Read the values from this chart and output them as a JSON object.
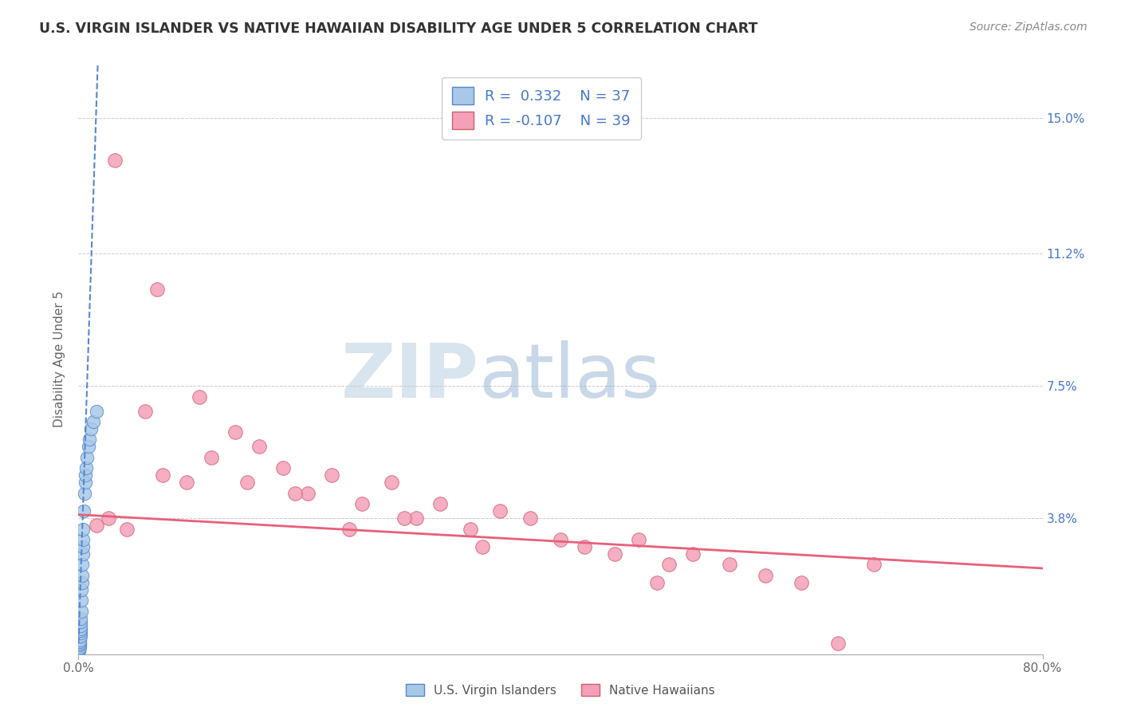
{
  "title": "U.S. VIRGIN ISLANDER VS NATIVE HAWAIIAN DISABILITY AGE UNDER 5 CORRELATION CHART",
  "source": "Source: ZipAtlas.com",
  "ylabel_left": "Disability Age Under 5",
  "legend_bottom": [
    "U.S. Virgin Islanders",
    "Native Hawaiians"
  ],
  "r_vi": 0.332,
  "n_vi": 37,
  "r_nh": -0.107,
  "n_nh": 39,
  "color_vi": "#a8c8e8",
  "color_nh": "#f4a0b8",
  "color_vi_line": "#5588cc",
  "color_nh_line": "#e8607a",
  "watermark_zip": "ZIP",
  "watermark_atlas": "atlas",
  "background_color": "#ffffff",
  "xmin": 0.0,
  "xmax": 80.0,
  "ymin": 0.0,
  "ymax": 16.5,
  "ytick_vals": [
    0.0,
    3.8,
    7.5,
    11.2,
    15.0
  ],
  "ytick_labels": [
    "",
    "3.8%",
    "7.5%",
    "11.2%",
    "15.0%"
  ],
  "vi_x": [
    0.05,
    0.06,
    0.07,
    0.08,
    0.09,
    0.1,
    0.11,
    0.12,
    0.13,
    0.14,
    0.15,
    0.16,
    0.17,
    0.18,
    0.19,
    0.2,
    0.22,
    0.24,
    0.26,
    0.28,
    0.3,
    0.32,
    0.34,
    0.36,
    0.38,
    0.4,
    0.45,
    0.5,
    0.55,
    0.6,
    0.65,
    0.7,
    0.8,
    0.9,
    1.0,
    1.2,
    1.5
  ],
  "vi_y": [
    0.1,
    0.1,
    0.15,
    0.2,
    0.25,
    0.3,
    0.35,
    0.4,
    0.5,
    0.5,
    0.6,
    0.65,
    0.7,
    0.8,
    0.9,
    1.0,
    1.2,
    1.5,
    1.8,
    2.0,
    2.2,
    2.5,
    2.8,
    3.0,
    3.2,
    3.5,
    4.0,
    4.5,
    4.8,
    5.0,
    5.2,
    5.5,
    5.8,
    6.0,
    6.3,
    6.5,
    6.8
  ],
  "nh_x": [
    1.5,
    2.5,
    4.0,
    5.5,
    7.0,
    9.0,
    11.0,
    13.0,
    15.0,
    17.0,
    19.0,
    21.0,
    23.5,
    26.0,
    28.0,
    30.0,
    32.5,
    35.0,
    37.5,
    40.0,
    42.0,
    44.5,
    46.5,
    49.0,
    51.0,
    54.0,
    57.0,
    60.0,
    63.0,
    66.0,
    3.0,
    6.5,
    10.0,
    14.0,
    18.0,
    22.5,
    27.0,
    33.5,
    48.0
  ],
  "nh_y": [
    3.6,
    3.8,
    3.5,
    6.8,
    5.0,
    4.8,
    5.5,
    6.2,
    5.8,
    5.2,
    4.5,
    5.0,
    4.2,
    4.8,
    3.8,
    4.2,
    3.5,
    4.0,
    3.8,
    3.2,
    3.0,
    2.8,
    3.2,
    2.5,
    2.8,
    2.5,
    2.2,
    2.0,
    0.3,
    2.5,
    13.8,
    10.2,
    7.2,
    4.8,
    4.5,
    3.5,
    3.8,
    3.0,
    2.0
  ],
  "vi_line_x0": 0.0,
  "vi_line_x1": 1.6,
  "vi_line_y0": 0.3,
  "vi_line_y1": 16.5,
  "nh_line_x0": 0.0,
  "nh_line_x1": 80.0,
  "nh_line_y0": 3.9,
  "nh_line_y1": 2.4
}
